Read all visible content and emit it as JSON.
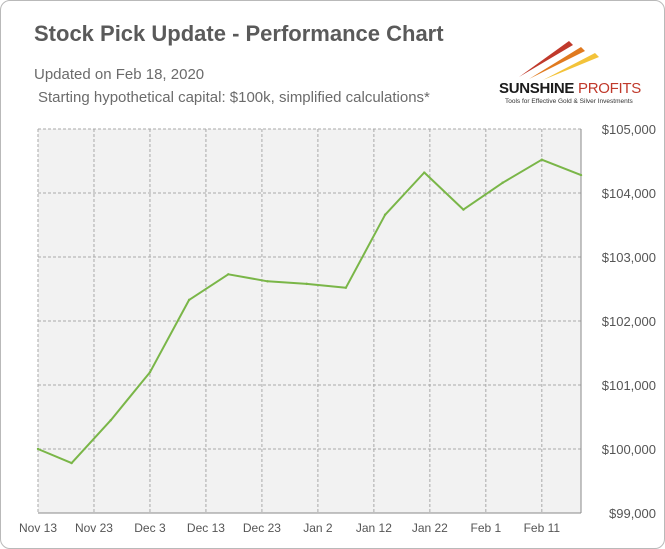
{
  "header": {
    "title": "Stock Pick Update - Performance Chart",
    "updated": "Updated on Feb 18, 2020",
    "note": "Starting hypothetical capital: $100k, simplified calculations*"
  },
  "logo": {
    "name_part1": "SUNSHINE",
    "name_part2": " PROFITS",
    "tagline": "Tools for Effective Gold & Silver Investments"
  },
  "colors": {
    "line": "#7ab648",
    "plot_bg": "#f2f2f2",
    "grid": "#a9a9a9"
  },
  "chart_data": {
    "type": "line",
    "xlabel": "",
    "ylabel": "",
    "x_ticks": [
      "Nov 13",
      "Nov 23",
      "Dec 3",
      "Dec 13",
      "Dec 23",
      "Jan 2",
      "Jan 12",
      "Jan 22",
      "Feb 1",
      "Feb 11"
    ],
    "y_ticks": [
      "$99,000",
      "$100,000",
      "$101,000",
      "$102,000",
      "$103,000",
      "$104,000",
      "$105,000"
    ],
    "ylim": [
      99000,
      105000
    ],
    "xlim": [
      "2019-11-13",
      "2020-02-18"
    ],
    "grid": true,
    "legend": "none",
    "series": [
      {
        "points": [
          {
            "x": "2019-11-13",
            "y": 100000
          },
          {
            "x": "2019-11-19",
            "y": 99780
          },
          {
            "x": "2019-11-26",
            "y": 100450
          },
          {
            "x": "2019-12-03",
            "y": 101200
          },
          {
            "x": "2019-12-10",
            "y": 102330
          },
          {
            "x": "2019-12-17",
            "y": 102730
          },
          {
            "x": "2019-12-24",
            "y": 102620
          },
          {
            "x": "2019-12-31",
            "y": 102580
          },
          {
            "x": "2020-01-07",
            "y": 102520
          },
          {
            "x": "2020-01-14",
            "y": 103660
          },
          {
            "x": "2020-01-21",
            "y": 104320
          },
          {
            "x": "2020-01-28",
            "y": 103740
          },
          {
            "x": "2020-02-04",
            "y": 104160
          },
          {
            "x": "2020-02-11",
            "y": 104520
          },
          {
            "x": "2020-02-18",
            "y": 104280
          }
        ]
      }
    ]
  }
}
